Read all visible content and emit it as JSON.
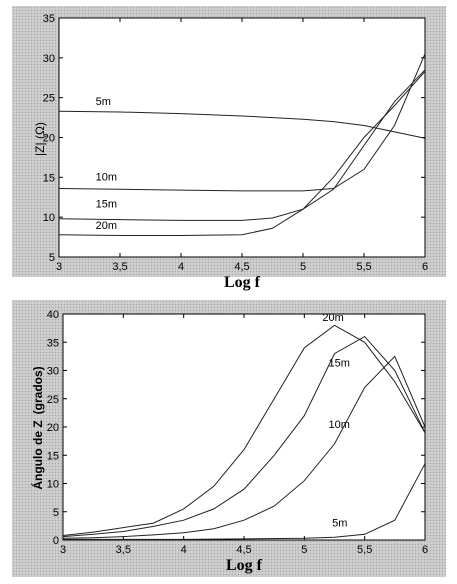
{
  "chart_data": [
    {
      "type": "line",
      "title": "",
      "xlabel": "Log f",
      "ylabel": "|Z| (Ω)",
      "xlim": [
        3,
        6
      ],
      "ylim": [
        5,
        35
      ],
      "xticks": [
        3,
        3.5,
        4,
        4.5,
        5,
        5.5,
        6
      ],
      "xtick_labels": [
        "3",
        "3,5",
        "4",
        "4,5",
        "5",
        "5,5",
        "6"
      ],
      "yticks": [
        5,
        10,
        15,
        20,
        25,
        30,
        35
      ],
      "ytick_labels": [
        "5",
        "10",
        "15",
        "20",
        "25",
        "30",
        "35"
      ],
      "grid": false,
      "series": [
        {
          "name": "5m",
          "x": [
            3,
            3.5,
            4,
            4.5,
            5,
            5.25,
            5.5,
            5.75,
            6
          ],
          "values": [
            23.3,
            23.2,
            23.0,
            22.7,
            22.3,
            22.0,
            21.5,
            20.7,
            19.9
          ]
        },
        {
          "name": "10m",
          "x": [
            3,
            3.5,
            4,
            4.5,
            5,
            5.25,
            5.5,
            5.75,
            6
          ],
          "values": [
            13.6,
            13.5,
            13.4,
            13.3,
            13.3,
            13.6,
            16.0,
            21.5,
            30.5
          ]
        },
        {
          "name": "15m",
          "x": [
            3,
            3.5,
            4,
            4.5,
            4.75,
            5,
            5.25,
            5.5,
            5.75,
            6
          ],
          "values": [
            9.8,
            9.7,
            9.6,
            9.6,
            9.9,
            11.0,
            13.5,
            19.0,
            24.5,
            28.5
          ]
        },
        {
          "name": "20m",
          "x": [
            3,
            3.5,
            4,
            4.5,
            4.75,
            5,
            5.25,
            5.5,
            5.75,
            6
          ],
          "values": [
            7.8,
            7.7,
            7.7,
            7.8,
            8.6,
            11.0,
            15.0,
            20.0,
            24.0,
            28.3
          ]
        }
      ],
      "label_positions": [
        {
          "name": "5m",
          "x": 3.3,
          "y": 24.1
        },
        {
          "name": "10m",
          "x": 3.3,
          "y": 14.6
        },
        {
          "name": "15m",
          "x": 3.3,
          "y": 11.2
        },
        {
          "name": "20m",
          "x": 3.3,
          "y": 8.5
        }
      ]
    },
    {
      "type": "line",
      "title": "",
      "xlabel": "Log f",
      "ylabel": "Ángulo de Z",
      "ylabel_suffix": "(grados)",
      "xlim": [
        3,
        6
      ],
      "ylim": [
        0,
        40
      ],
      "xticks": [
        3,
        3.5,
        4,
        4.5,
        5,
        5.5,
        6
      ],
      "xtick_labels": [
        "3",
        "3,5",
        "4",
        "4,5",
        "5",
        "5,5",
        "6"
      ],
      "yticks": [
        0,
        5,
        10,
        15,
        20,
        25,
        30,
        35,
        40
      ],
      "ytick_labels": [
        "0",
        "5",
        "10",
        "15",
        "20",
        "25",
        "30",
        "35",
        "40"
      ],
      "grid": false,
      "series": [
        {
          "name": "20m",
          "x": [
            3,
            3.25,
            3.5,
            3.75,
            4,
            4.25,
            4.5,
            4.75,
            5,
            5.25,
            5.5,
            5.75,
            6
          ],
          "values": [
            0.8,
            1.4,
            2.2,
            3.0,
            5.5,
            9.5,
            16,
            25,
            34,
            38,
            35,
            28,
            19
          ]
        },
        {
          "name": "15m",
          "x": [
            3,
            3.25,
            3.5,
            3.75,
            4,
            4.25,
            4.5,
            4.75,
            5,
            5.25,
            5.5,
            5.75,
            6
          ],
          "values": [
            0.6,
            1.0,
            1.5,
            2.4,
            3.5,
            5.5,
            9,
            15,
            22,
            33,
            36,
            30,
            19
          ]
        },
        {
          "name": "10m",
          "x": [
            3,
            3.25,
            3.5,
            3.75,
            4,
            4.25,
            4.5,
            4.75,
            5,
            5.25,
            5.5,
            5.75,
            6
          ],
          "values": [
            0.3,
            0.4,
            0.6,
            0.9,
            1.3,
            2.0,
            3.5,
            6,
            10.5,
            17,
            27,
            32.5,
            20
          ]
        },
        {
          "name": "5m",
          "x": [
            3,
            3.5,
            4,
            4.5,
            5,
            5.25,
            5.5,
            5.75,
            6
          ],
          "values": [
            0.1,
            0.1,
            0.1,
            0.2,
            0.3,
            0.5,
            1.0,
            3.5,
            13.5
          ]
        }
      ],
      "label_positions": [
        {
          "name": "20m",
          "x": 5.15,
          "y": 38.8
        },
        {
          "name": "15m",
          "x": 5.2,
          "y": 30.7
        },
        {
          "name": "10m",
          "x": 5.2,
          "y": 19.8
        },
        {
          "name": "5m",
          "x": 5.23,
          "y": 2.4
        }
      ]
    }
  ]
}
